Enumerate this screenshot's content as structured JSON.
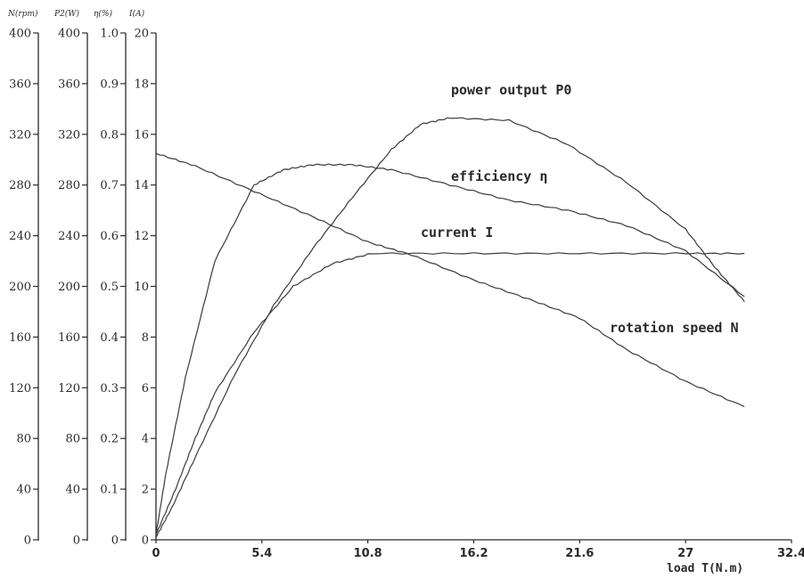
{
  "chart_data": {
    "type": "line",
    "xlabel": "load T(N.m)",
    "x_ticks": [
      "0",
      "5.4",
      "10.8",
      "16.2",
      "21.6",
      "27",
      "32.4"
    ],
    "xlim": [
      0,
      32.4
    ],
    "axes": [
      {
        "label": "N(rpm)",
        "ticks": [
          "400",
          "360",
          "320",
          "280",
          "240",
          "200",
          "160",
          "120",
          "80",
          "40",
          "0"
        ],
        "ylim": [
          0,
          400
        ]
      },
      {
        "label": "P2(W)",
        "ticks": [
          "400",
          "360",
          "320",
          "280",
          "240",
          "200",
          "160",
          "120",
          "80",
          "40",
          "0"
        ],
        "ylim": [
          0,
          400
        ]
      },
      {
        "label": "η(%)",
        "ticks": [
          "1.0",
          "0.9",
          "0.8",
          "0.7",
          "0.6",
          "0.5",
          "0.4",
          "0.3",
          "0.2",
          "0.1",
          "0"
        ],
        "ylim": [
          0,
          1.0
        ]
      },
      {
        "label": "I(A)",
        "ticks": [
          "20",
          "18",
          "16",
          "14",
          "12",
          "10",
          "8",
          "6",
          "4",
          "2",
          "0"
        ],
        "ylim": [
          0,
          20
        ]
      }
    ],
    "series": [
      {
        "name": "rotation speed N",
        "axis": 0,
        "x": [
          0,
          2,
          5,
          8,
          10.8,
          13,
          16.2,
          19,
          21.6,
          24,
          27,
          30
        ],
        "y": [
          305,
          295,
          275,
          255,
          235,
          225,
          205,
          190,
          175,
          150,
          125,
          105
        ]
      },
      {
        "name": "power output P0",
        "axis": 1,
        "x": [
          0,
          0.8,
          2,
          4,
          6,
          8,
          10,
          12,
          13.5,
          15,
          18,
          21,
          24,
          27,
          28.5,
          30
        ],
        "y": [
          2,
          25,
          65,
          130,
          185,
          230,
          270,
          308,
          328,
          333,
          331,
          312,
          282,
          245,
          215,
          188
        ]
      },
      {
        "name": "efficiency η",
        "axis": 2,
        "x": [
          0,
          0.5,
          1.5,
          3,
          5,
          6.5,
          8,
          10,
          12,
          15,
          18,
          21,
          24,
          27,
          30
        ],
        "y": [
          0.01,
          0.13,
          0.32,
          0.55,
          0.7,
          0.73,
          0.74,
          0.74,
          0.73,
          0.7,
          0.67,
          0.65,
          0.62,
          0.57,
          0.48
        ]
      },
      {
        "name": "current I",
        "axis": 3,
        "x": [
          0,
          1,
          2,
          3,
          5,
          7,
          9,
          11,
          16.2,
          21.6,
          27,
          30
        ],
        "y": [
          0.2,
          2,
          4,
          5.8,
          8.2,
          10,
          10.9,
          11.3,
          11.3,
          11.3,
          11.3,
          11.3
        ]
      }
    ],
    "annotations": [
      {
        "text": "power output P0",
        "series": 1
      },
      {
        "text": "efficiency η",
        "series": 2
      },
      {
        "text": "current I",
        "series": 3
      },
      {
        "text": "rotation speed N",
        "series": 0
      }
    ],
    "grid": false,
    "legend": "none"
  }
}
